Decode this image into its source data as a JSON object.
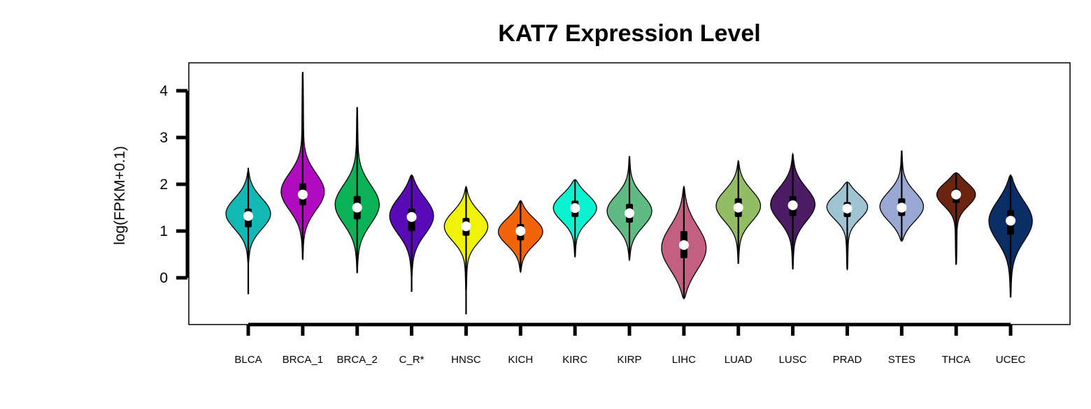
{
  "chart_data": {
    "type": "violin",
    "title": "KAT7 Expression Level",
    "ylabel": "log(FPKM+0.1)",
    "xlabel": "",
    "ylim": [
      -1,
      4.5
    ],
    "yticks": [
      "0",
      "1",
      "2",
      "3",
      "4"
    ],
    "grid": false,
    "legend": "none",
    "categories": [
      "BLCA",
      "BRCA_1",
      "BRCA_2",
      "C_R*",
      "HNSC",
      "KICH",
      "KIRC",
      "KIRP",
      "LIHC",
      "LUAD",
      "LUSC",
      "PRAD",
      "STES",
      "THCA",
      "UCEC"
    ],
    "colors": [
      "#12b8b3",
      "#b10bc0",
      "#0bb257",
      "#5a0bb8",
      "#eff20b",
      "#f2640b",
      "#0bf2d0",
      "#5fba83",
      "#c36082",
      "#92bd64",
      "#4b1b63",
      "#9ec3d2",
      "#98a8d2",
      "#6a2410",
      "#0c2e66"
    ],
    "violins": [
      {
        "median": 1.32,
        "q1": 1.08,
        "q3": 1.48,
        "wlo": 0.4,
        "whi": 2.1,
        "min": -0.35,
        "max": 2.35,
        "vmin": 0.3,
        "vmax": 2.3,
        "mode": 1.38
      },
      {
        "median": 1.78,
        "q1": 1.55,
        "q3": 2.02,
        "wlo": 0.4,
        "whi": 2.75,
        "min": 0.4,
        "max": 4.4,
        "vmin": 0.38,
        "vmax": 4.4,
        "mode": 1.82
      },
      {
        "median": 1.5,
        "q1": 1.25,
        "q3": 1.75,
        "wlo": 0.5,
        "whi": 2.5,
        "min": 0.1,
        "max": 3.65,
        "vmin": 0.1,
        "vmax": 3.65,
        "mode": 1.55
      },
      {
        "median": 1.3,
        "q1": 1.0,
        "q3": 1.48,
        "wlo": 0.3,
        "whi": 2.2,
        "min": -0.3,
        "max": 2.2,
        "vmin": 0.0,
        "vmax": 2.2,
        "mode": 1.35
      },
      {
        "median": 1.1,
        "q1": 0.9,
        "q3": 1.28,
        "wlo": 0.2,
        "whi": 1.95,
        "min": -0.78,
        "max": 1.95,
        "vmin": -0.3,
        "vmax": 1.95,
        "mode": 1.12
      },
      {
        "median": 1.0,
        "q1": 0.8,
        "q3": 1.15,
        "wlo": 0.15,
        "whi": 1.65,
        "min": 0.15,
        "max": 1.65,
        "vmin": 0.12,
        "vmax": 1.65,
        "mode": 1.0
      },
      {
        "median": 1.49,
        "q1": 1.3,
        "q3": 1.65,
        "wlo": 0.7,
        "whi": 2.1,
        "min": 0.45,
        "max": 2.1,
        "vmin": 0.45,
        "vmax": 2.1,
        "mode": 1.52
      },
      {
        "median": 1.38,
        "q1": 1.18,
        "q3": 1.58,
        "wlo": 0.5,
        "whi": 2.2,
        "min": 0.38,
        "max": 2.6,
        "vmin": 0.38,
        "vmax": 2.6,
        "mode": 1.42
      },
      {
        "median": 0.7,
        "q1": 0.42,
        "q3": 1.0,
        "wlo": -0.4,
        "whi": 1.9,
        "min": -0.45,
        "max": 1.95,
        "vmin": -0.45,
        "vmax": 1.95,
        "mode": 0.62
      },
      {
        "median": 1.5,
        "q1": 1.3,
        "q3": 1.7,
        "wlo": 0.6,
        "whi": 2.4,
        "min": 0.3,
        "max": 2.5,
        "vmin": 0.3,
        "vmax": 2.5,
        "mode": 1.55
      },
      {
        "median": 1.55,
        "q1": 1.32,
        "q3": 1.75,
        "wlo": 0.5,
        "whi": 2.3,
        "min": 0.18,
        "max": 2.65,
        "vmin": 0.18,
        "vmax": 2.65,
        "mode": 1.58
      },
      {
        "median": 1.48,
        "q1": 1.3,
        "q3": 1.62,
        "wlo": 0.4,
        "whi": 2.05,
        "min": 0.18,
        "max": 2.05,
        "vmin": 0.18,
        "vmax": 2.05,
        "mode": 1.55
      },
      {
        "median": 1.5,
        "q1": 1.32,
        "q3": 1.7,
        "wlo": 0.8,
        "whi": 2.3,
        "min": 0.78,
        "max": 2.72,
        "vmin": 0.78,
        "vmax": 2.72,
        "mode": 1.5
      },
      {
        "median": 1.78,
        "q1": 1.6,
        "q3": 1.9,
        "wlo": 1.0,
        "whi": 2.25,
        "min": 0.28,
        "max": 2.25,
        "vmin": 0.28,
        "vmax": 2.25,
        "mode": 1.82
      },
      {
        "median": 1.22,
        "q1": 0.92,
        "q3": 1.45,
        "wlo": -0.2,
        "whi": 2.2,
        "min": -0.42,
        "max": 2.2,
        "vmin": -0.42,
        "vmax": 2.2,
        "mode": 1.25
      }
    ]
  }
}
